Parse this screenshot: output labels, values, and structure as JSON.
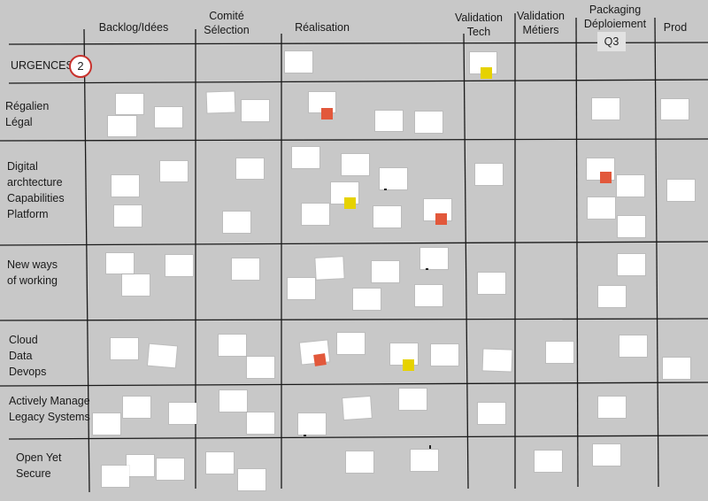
{
  "columns": {
    "backlog": "Backlog/Idées",
    "comite": "Comité\nSélection",
    "realisation": "Réalisation",
    "validation_tech": "Validation\nTech",
    "validation_metiers": "Validation\nMétiers",
    "packaging": "Packaging\nDéploiement",
    "packaging_badge": "Q3",
    "prod": "Prod"
  },
  "rows": {
    "urgences": "URGENCES",
    "urgences_count": "2",
    "regalien": "Régalien\nLégal",
    "digital": "Digital\narchtecture\nCapabilities\nPlatform",
    "newways": "New ways\nof working",
    "cloud": "Cloud\nData\nDevops",
    "legacy": "Actively  Manage\nLegacy Systems",
    "secure": "Open Yet\nSecure"
  },
  "colors": {
    "card": "#ffffff",
    "board": "#c8c8c8",
    "sticky_yellow": "#e6d200",
    "sticky_orange": "#e2583b",
    "line": "#1a1a1a"
  }
}
